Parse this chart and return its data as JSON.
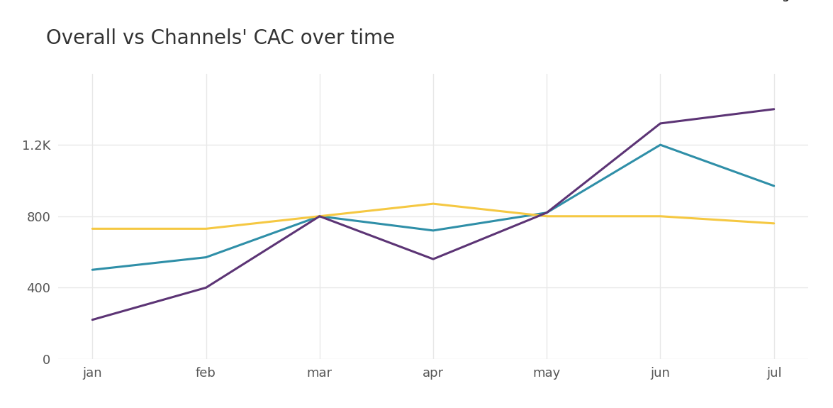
{
  "title": "Overall vs Channels' CAC over time",
  "months": [
    "jan",
    "feb",
    "mar",
    "apr",
    "may",
    "jun",
    "jul"
  ],
  "overall": [
    500,
    570,
    800,
    720,
    820,
    1200,
    970
  ],
  "facebook": [
    730,
    730,
    800,
    870,
    800,
    800,
    760
  ],
  "google": [
    220,
    400,
    800,
    560,
    820,
    1320,
    1400
  ],
  "overall_color": "#2f8fa8",
  "facebook_color": "#f5c842",
  "google_color": "#5c3475",
  "line_width": 2.2,
  "title_fontsize": 20,
  "tick_fontsize": 13,
  "legend_fontsize": 13,
  "background_color": "#ffffff",
  "grid_color": "#e8e8e8",
  "ylim": [
    0,
    1600
  ],
  "yticks": [
    0,
    400,
    800,
    1200
  ],
  "ytick_labels": [
    "0",
    "400",
    "800",
    "1.2K"
  ]
}
